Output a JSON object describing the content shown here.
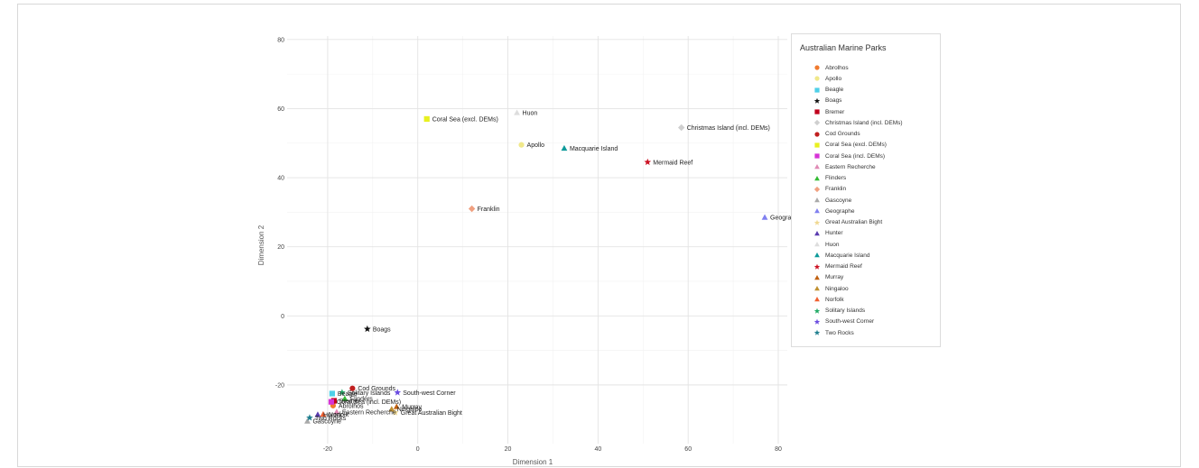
{
  "chart_data": {
    "type": "scatter",
    "xlabel": "Dimension 1",
    "ylabel": "Dimension 2",
    "xlim": [
      -29,
      82
    ],
    "ylim": [
      -37,
      81
    ],
    "xticks": [
      -20,
      0,
      20,
      40,
      60,
      80
    ],
    "yticks": [
      -20,
      0,
      20,
      40,
      60,
      80
    ],
    "grid": true,
    "legend_title": "Australian Marine Parks",
    "legend_position": "right",
    "series": [
      {
        "name": "Abrolhos",
        "color": "#f07a2e",
        "shape": "circle",
        "x": -18.8,
        "y": -26.0,
        "label": "Abrolhos"
      },
      {
        "name": "Apollo",
        "color": "#f0e88a",
        "shape": "circle",
        "x": 23.0,
        "y": 49.5,
        "label": "Apollo"
      },
      {
        "name": "Beagle",
        "color": "#4fd0e8",
        "shape": "square",
        "x": -19.0,
        "y": -22.5,
        "label": "Beagle"
      },
      {
        "name": "Boags",
        "color": "#111111",
        "shape": "star",
        "x": -11.2,
        "y": -3.8,
        "label": "Boags"
      },
      {
        "name": "Bremer",
        "color": "#c0001c",
        "shape": "square",
        "x": -18.6,
        "y": -24.6,
        "label": "Bremer"
      },
      {
        "name": "Christmas Island (incl. DEMs)",
        "color": "#cfcfcf",
        "shape": "diamond",
        "x": 58.5,
        "y": 54.5,
        "label": "Christmas Island (incl. DEMs)"
      },
      {
        "name": "Cod Grounds",
        "color": "#c01f1f",
        "shape": "circle",
        "x": -14.5,
        "y": -21.0,
        "label": "Cod Grounds"
      },
      {
        "name": "Coral Sea (excl. DEMs)",
        "color": "#e8f020",
        "shape": "square",
        "x": 2.0,
        "y": 57.0,
        "label": "Coral Sea (excl. DEMs)"
      },
      {
        "name": "Coral Sea (incl. DEMs)",
        "color": "#d633d6",
        "shape": "square",
        "x": -19.2,
        "y": -24.9,
        "label": "Coral Sea (incl. DEMs)"
      },
      {
        "name": "Eastern Recherche",
        "color": "#e08ab5",
        "shape": "triangle",
        "x": -18.0,
        "y": -27.8,
        "label": "Eastern Recherche"
      },
      {
        "name": "Flinders",
        "color": "#33bb33",
        "shape": "triangle",
        "x": -16.2,
        "y": -24.0,
        "label": "Flinders"
      },
      {
        "name": "Franklin",
        "color": "#f0a080",
        "shape": "diamond",
        "x": 12.0,
        "y": 31.0,
        "label": "Franklin"
      },
      {
        "name": "Gascoyne",
        "color": "#aaaaaa",
        "shape": "triangle",
        "x": -24.5,
        "y": -30.5,
        "label": "Gascoyne"
      },
      {
        "name": "Geographe",
        "color": "#8080f0",
        "shape": "triangle",
        "x": 77.0,
        "y": 28.5,
        "label": "Geographe"
      },
      {
        "name": "Great Australian Bight",
        "color": "#f0d890",
        "shape": "star",
        "x": -5.0,
        "y": -28.0,
        "label": "Great Australian Bight"
      },
      {
        "name": "Hunter",
        "color": "#5a3cb0",
        "shape": "triangle",
        "x": -22.2,
        "y": -28.6,
        "label": "Hunter"
      },
      {
        "name": "Huon",
        "color": "#dddddd",
        "shape": "triangle",
        "x": 22.0,
        "y": 58.8,
        "label": "Huon"
      },
      {
        "name": "Macquarie Island",
        "color": "#0e9a9a",
        "shape": "triangle",
        "x": 32.5,
        "y": 48.5,
        "label": "Macquarie Island"
      },
      {
        "name": "Mermaid Reef",
        "color": "#cc1122",
        "shape": "star",
        "x": 51.0,
        "y": 44.5,
        "label": "Mermaid Reef"
      },
      {
        "name": "Murray",
        "color": "#c06010",
        "shape": "triangle",
        "x": -4.7,
        "y": -26.3,
        "label": "Murray"
      },
      {
        "name": "Ningaloo",
        "color": "#c09030",
        "shape": "triangle",
        "x": -5.8,
        "y": -27.0,
        "label": "Ningaloo"
      },
      {
        "name": "Norfolk",
        "color": "#f06030",
        "shape": "triangle",
        "x": -21.0,
        "y": -28.5,
        "label": "Norfolk"
      },
      {
        "name": "Solitary Islands",
        "color": "#22aa66",
        "shape": "star",
        "x": -16.8,
        "y": -22.2,
        "label": "Solitary Islands"
      },
      {
        "name": "South-west Corner",
        "color": "#6a4ce0",
        "shape": "star",
        "x": -4.5,
        "y": -22.2,
        "label": "South-west Corner"
      },
      {
        "name": "Two Rocks",
        "color": "#1f7f8f",
        "shape": "star",
        "x": -24.0,
        "y": -29.5,
        "label": "Two Rocks"
      }
    ]
  }
}
